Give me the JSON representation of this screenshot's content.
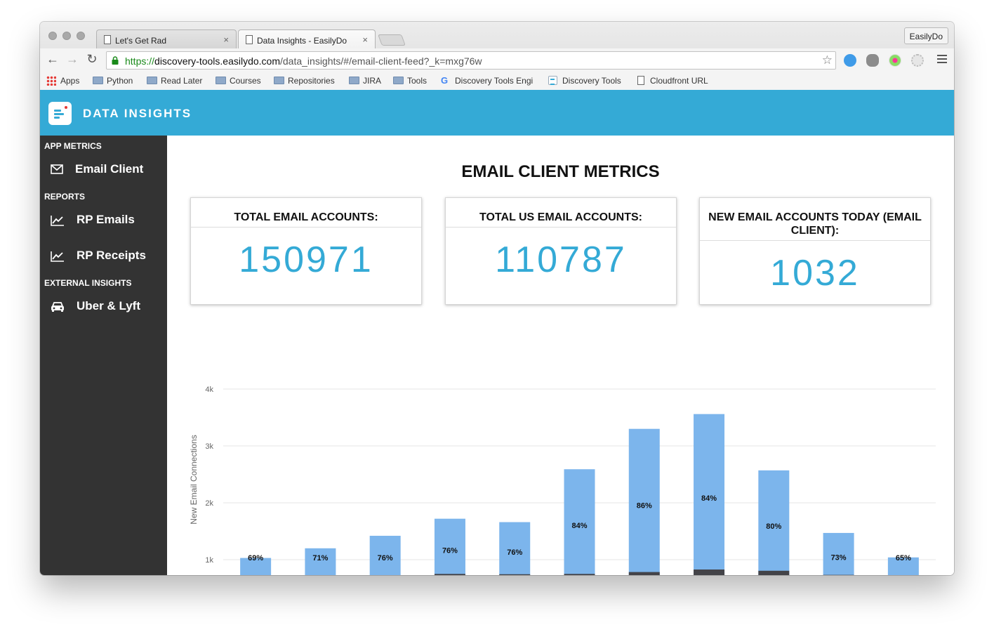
{
  "browser": {
    "tabs": [
      {
        "title": "Let's Get Rad"
      },
      {
        "title": "Data Insights - EasilyDo"
      }
    ],
    "profile": "EasilyDo",
    "url": {
      "scheme": "https://",
      "host": "discovery-tools.easilydo.com",
      "path": "/data_insights/#/email-client-feed?_k=mxg76w"
    },
    "bookmarks": [
      {
        "label": "Apps",
        "icon": "apps-icon"
      },
      {
        "label": "Python",
        "icon": "folder-icon"
      },
      {
        "label": "Read Later",
        "icon": "folder-icon"
      },
      {
        "label": "Courses",
        "icon": "folder-icon"
      },
      {
        "label": "Repositories",
        "icon": "folder-icon"
      },
      {
        "label": "JIRA",
        "icon": "folder-icon"
      },
      {
        "label": "Tools",
        "icon": "folder-icon"
      },
      {
        "label": "Discovery Tools Engi",
        "icon": "google-icon"
      },
      {
        "label": "Discovery Tools",
        "icon": "data-insights-icon"
      },
      {
        "label": "Cloudfront URL",
        "icon": "file-icon"
      }
    ]
  },
  "app": {
    "title": "DATA INSIGHTS",
    "accent": "#34aad6",
    "sidebar_bg": "#333333"
  },
  "sidebar": {
    "sections": [
      {
        "title": "APP METRICS",
        "items": [
          {
            "label": "Email Client",
            "icon": "envelope-icon"
          }
        ]
      },
      {
        "title": "REPORTS",
        "items": [
          {
            "label": "RP Emails",
            "icon": "line-chart-icon"
          },
          {
            "label": "RP Receipts",
            "icon": "line-chart-icon"
          }
        ]
      },
      {
        "title": "EXTERNAL INSIGHTS",
        "items": [
          {
            "label": "Uber & Lyft",
            "icon": "car-icon"
          }
        ]
      }
    ]
  },
  "main": {
    "title": "EMAIL CLIENT METRICS",
    "cards": [
      {
        "label": "TOTAL EMAIL ACCOUNTS:",
        "value": "150971"
      },
      {
        "label": "TOTAL US EMAIL ACCOUNTS:",
        "value": "110787"
      },
      {
        "label": "NEW EMAIL ACCOUNTS TODAY (EMAIL CLIENT):",
        "value": "1032"
      }
    ]
  },
  "chart_data": {
    "type": "bar",
    "stacked": true,
    "ylabel": "New Email Connections",
    "yticks": [
      "1k",
      "2k",
      "3k",
      "4k"
    ],
    "ylim": [
      0,
      4000
    ],
    "grid": true,
    "series_colors": [
      "#7cb5ec",
      "#434348"
    ],
    "values": [
      1030,
      1200,
      1420,
      1720,
      1660,
      2590,
      3300,
      3560,
      2570,
      1470,
      1040
    ],
    "dark_values": [
      0,
      0,
      0,
      60,
      50,
      60,
      120,
      200,
      160,
      30,
      10
    ],
    "labels": [
      "69%",
      "71%",
      "76%",
      "76%",
      "76%",
      "84%",
      "86%",
      "84%",
      "80%",
      "73%",
      "65%"
    ]
  }
}
